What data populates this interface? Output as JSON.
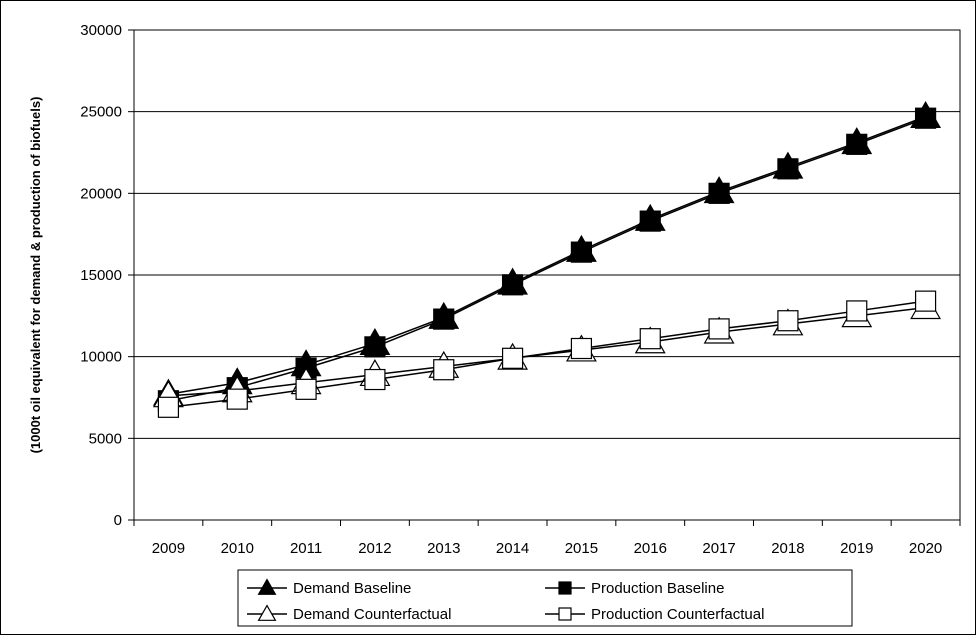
{
  "chart_data": {
    "type": "line",
    "title": "",
    "xlabel": "",
    "ylabel": "(1000t oil equivalent for demand & production of biofuels)",
    "categories": [
      "2009",
      "2010",
      "2011",
      "2012",
      "2013",
      "2014",
      "2015",
      "2016",
      "2017",
      "2018",
      "2019",
      "2020"
    ],
    "ylim": [
      0,
      30000
    ],
    "yticks": [
      0,
      5000,
      10000,
      15000,
      20000,
      25000,
      30000
    ],
    "grid": "horizontal",
    "legend_position": "bottom",
    "series": [
      {
        "name": "Demand Baseline",
        "marker": "triangle",
        "fill": "#000000",
        "values": [
          7700,
          8400,
          9500,
          10800,
          12400,
          14500,
          16500,
          18400,
          20100,
          21600,
          23100,
          24700
        ]
      },
      {
        "name": "Production Baseline",
        "marker": "square",
        "fill": "#000000",
        "values": [
          7300,
          8100,
          9300,
          10600,
          12300,
          14400,
          16400,
          18300,
          20000,
          21500,
          23000,
          24600
        ]
      },
      {
        "name": "Demand Counterfactual",
        "marker": "triangle",
        "fill": "#ffffff",
        "values": [
          7600,
          7900,
          8400,
          8900,
          9400,
          9900,
          10400,
          10900,
          11500,
          12000,
          12500,
          13000
        ]
      },
      {
        "name": "Production Counterfactual",
        "marker": "square",
        "fill": "#ffffff",
        "values": [
          6900,
          7400,
          8000,
          8600,
          9200,
          9900,
          10500,
          11100,
          11700,
          12200,
          12800,
          13400
        ]
      }
    ]
  }
}
